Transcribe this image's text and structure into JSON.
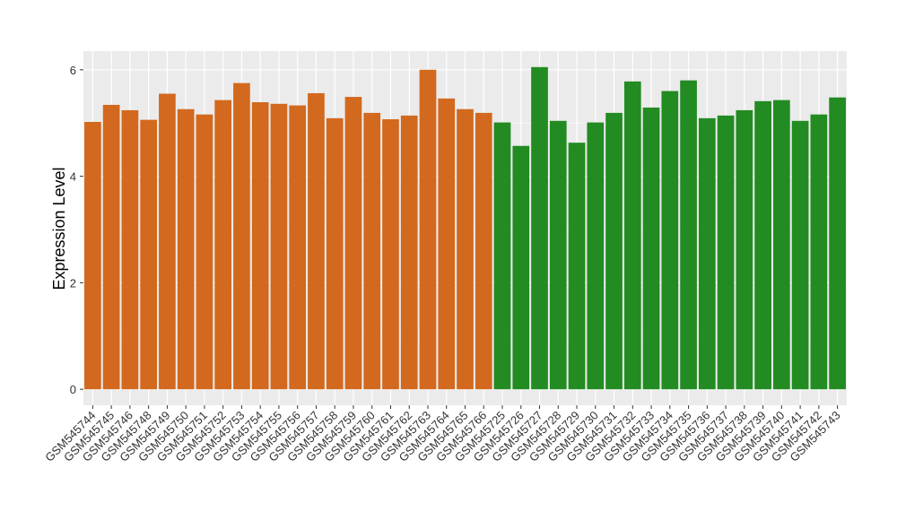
{
  "chart_data": {
    "type": "bar",
    "y_label": "Expression Level",
    "categories": [
      "GSM545744",
      "GSM545745",
      "GSM545746",
      "GSM545748",
      "GSM545749",
      "GSM545750",
      "GSM545751",
      "GSM545752",
      "GSM545753",
      "GSM545754",
      "GSM545755",
      "GSM545756",
      "GSM545757",
      "GSM545758",
      "GSM545759",
      "GSM545760",
      "GSM545761",
      "GSM545762",
      "GSM545763",
      "GSM545764",
      "GSM545765",
      "GSM545766",
      "GSM545725",
      "GSM545726",
      "GSM545727",
      "GSM545728",
      "GSM545729",
      "GSM545730",
      "GSM545731",
      "GSM545732",
      "GSM545733",
      "GSM545734",
      "GSM545735",
      "GSM545736",
      "GSM545737",
      "GSM545738",
      "GSM545739",
      "GSM545740",
      "GSM545741",
      "GSM545742",
      "GSM545743"
    ],
    "values": [
      5.02,
      5.34,
      5.24,
      5.06,
      5.55,
      5.26,
      5.16,
      5.43,
      5.75,
      5.39,
      5.36,
      5.33,
      5.56,
      5.09,
      5.49,
      5.19,
      5.07,
      5.14,
      6.0,
      5.46,
      5.26,
      5.19,
      5.01,
      4.57,
      6.05,
      5.04,
      4.63,
      5.01,
      5.19,
      5.78,
      5.29,
      5.6,
      5.8,
      5.09,
      5.14,
      5.24,
      5.41,
      5.43,
      5.04,
      5.16,
      5.48
    ],
    "colors": [
      "#d2691e",
      "#d2691e",
      "#d2691e",
      "#d2691e",
      "#d2691e",
      "#d2691e",
      "#d2691e",
      "#d2691e",
      "#d2691e",
      "#d2691e",
      "#d2691e",
      "#d2691e",
      "#d2691e",
      "#d2691e",
      "#d2691e",
      "#d2691e",
      "#d2691e",
      "#d2691e",
      "#d2691e",
      "#d2691e",
      "#d2691e",
      "#d2691e",
      "#228b22",
      "#228b22",
      "#228b22",
      "#228b22",
      "#228b22",
      "#228b22",
      "#228b22",
      "#228b22",
      "#228b22",
      "#228b22",
      "#228b22",
      "#228b22",
      "#228b22",
      "#228b22",
      "#228b22",
      "#228b22",
      "#228b22",
      "#228b22",
      "#228b22"
    ],
    "ylim": [
      -0.3,
      6.35
    ],
    "yticks": [
      0,
      2,
      4,
      6
    ],
    "grid": true,
    "minor_grid": true
  }
}
